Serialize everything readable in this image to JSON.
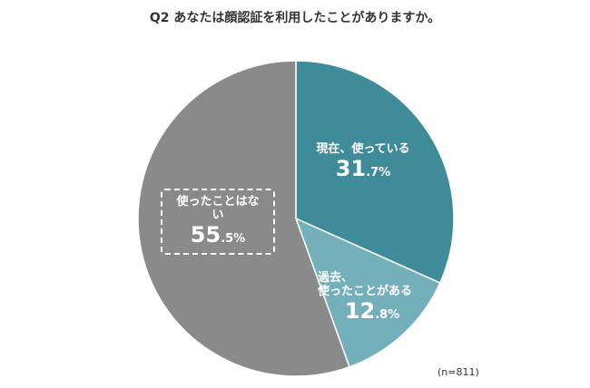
{
  "title": "Q2 あなたは顔認証を利用したことがありますか。",
  "note": "(n=811)",
  "chart_data": {
    "type": "pie",
    "title": "Q2 あなたは顔認証を利用したことがありますか。",
    "start": "top, clockwise",
    "slices": [
      {
        "label": "現在、使っている",
        "label_lines": [
          "現在、使っている"
        ],
        "value": 31.7,
        "int": "31",
        "dec": ".7%",
        "color": "#3f8b9a"
      },
      {
        "label": "過去、使ったことがある",
        "label_lines": [
          "過去、",
          "使ったことがある"
        ],
        "value": 12.8,
        "int": "12",
        "dec": ".8%",
        "color": "#74b0ba"
      },
      {
        "label": "使ったことはない",
        "label_lines": [
          "使ったことはない"
        ],
        "value": 55.5,
        "int": "55",
        "dec": ".5%",
        "color": "#8a8a8a"
      }
    ],
    "highlighted": "使ったことはない"
  }
}
